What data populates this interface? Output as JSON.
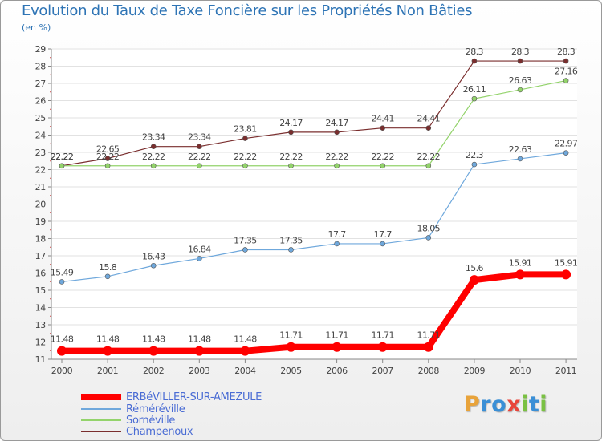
{
  "chart_data": {
    "type": "line",
    "title": "Evolution du Taux de Taxe Foncière sur les Propriétés Non Bâties",
    "ylabel": "(en %)",
    "xlabel": "",
    "x": [
      "2000",
      "2001",
      "2002",
      "2003",
      "2004",
      "2005",
      "2006",
      "2007",
      "2008",
      "2009",
      "2010",
      "2011"
    ],
    "ylim": [
      11,
      29
    ],
    "yticks": [
      11,
      12,
      13,
      14,
      15,
      16,
      17,
      18,
      19,
      20,
      21,
      22,
      23,
      24,
      25,
      26,
      27,
      28,
      29
    ],
    "grid": "horizontal",
    "series": [
      {
        "name": "ERBéVILLER-SUR-AMEZULE",
        "color": "#ff0000",
        "values": [
          11.48,
          11.48,
          11.48,
          11.48,
          11.48,
          11.71,
          11.71,
          11.71,
          11.71,
          15.6,
          15.91,
          15.91
        ],
        "labels": [
          "11.48",
          "11.48",
          "11.48",
          "11.48",
          "11.48",
          "11.71",
          "11.71",
          "11.71",
          "11.71",
          "15.6",
          "15.91",
          "15.91"
        ]
      },
      {
        "name": "Réméréville",
        "color": "#6fa8dc",
        "values": [
          15.49,
          15.8,
          16.43,
          16.84,
          17.35,
          17.35,
          17.7,
          17.7,
          18.05,
          22.3,
          22.63,
          22.97
        ],
        "labels": [
          "15.49",
          "15.8",
          "16.43",
          "16.84",
          "17.35",
          "17.35",
          "17.7",
          "17.7",
          "18.05",
          "22.3",
          "22.63",
          "22.97"
        ]
      },
      {
        "name": "Sornéville",
        "color": "#93d36b",
        "values": [
          22.22,
          22.22,
          22.22,
          22.22,
          22.22,
          22.22,
          22.22,
          22.22,
          22.22,
          26.11,
          26.63,
          27.16
        ],
        "labels": [
          "22.22",
          "22.22",
          "22.22",
          "22.22",
          "22.22",
          "22.22",
          "22.22",
          "22.22",
          "22.22",
          "26.11",
          "26.63",
          "27.16"
        ]
      },
      {
        "name": "Champenoux",
        "color": "#7a2e2e",
        "values": [
          22.22,
          22.65,
          23.34,
          23.34,
          23.81,
          24.17,
          24.17,
          24.41,
          24.41,
          28.3,
          28.3,
          28.3
        ],
        "labels": [
          "22.22",
          "22.65",
          "23.34",
          "23.34",
          "23.81",
          "24.17",
          "24.17",
          "24.41",
          "24.41",
          "28.3",
          "28.3",
          "28.3"
        ]
      }
    ]
  },
  "logo": {
    "letters": [
      "P",
      "r",
      "o",
      "x",
      "i",
      "t",
      "i"
    ],
    "colors": [
      "#e8a33b",
      "#3a8fd6",
      "#3a8fd6",
      "#e8453b",
      "#7ac143",
      "#3a8fd6",
      "#7ac143"
    ]
  }
}
